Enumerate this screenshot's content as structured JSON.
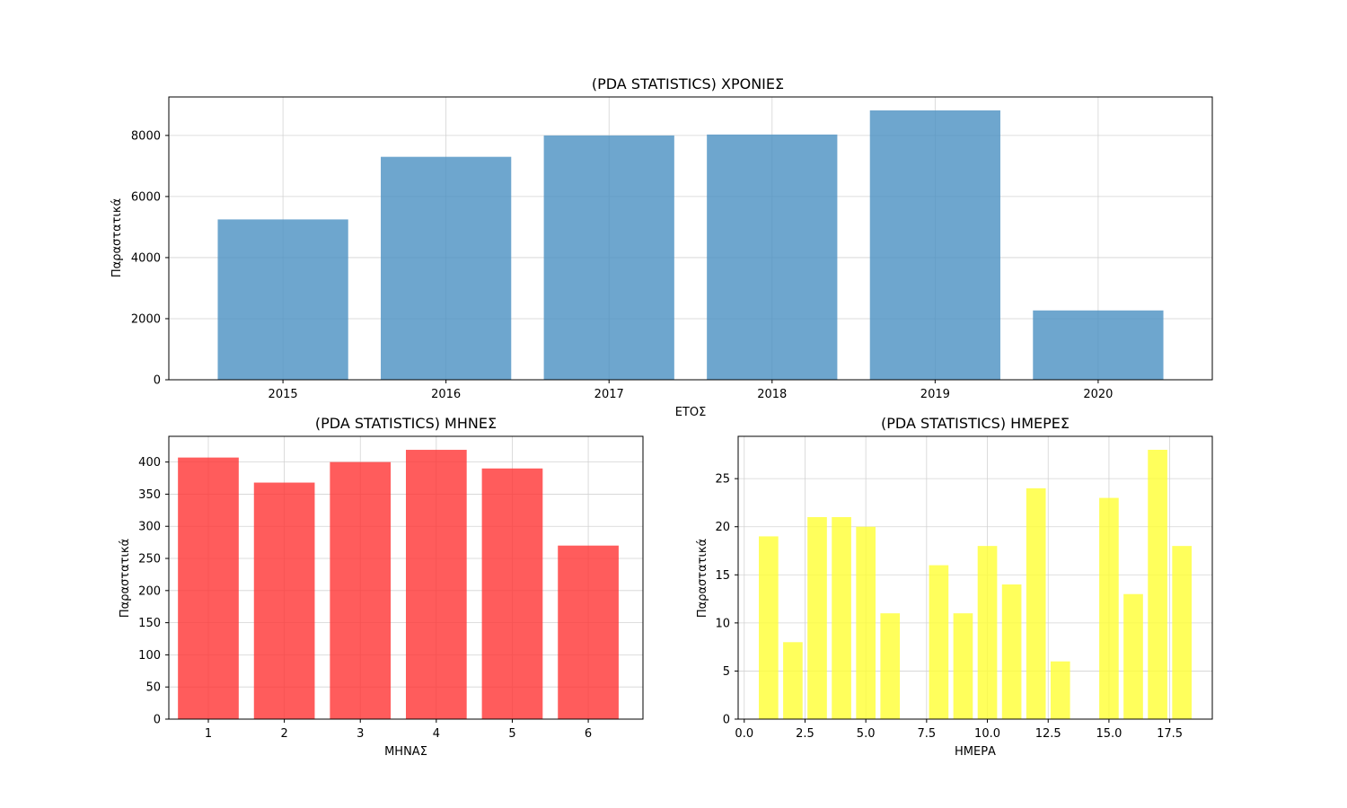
{
  "chart_data": [
    {
      "type": "bar",
      "title": "(PDA STATISTICS) ΧΡΟΝΙΕΣ",
      "xlabel": "ΕΤΟΣ",
      "ylabel": "Παραστατικά",
      "categories": [
        "2015",
        "2016",
        "2017",
        "2018",
        "2019",
        "2020"
      ],
      "values": [
        5250,
        7300,
        8000,
        8030,
        8820,
        2270
      ],
      "x": [
        2015,
        2016,
        2017,
        2018,
        2019,
        2020
      ],
      "xlim": [
        2014.3,
        2020.7
      ],
      "ylim": [
        0,
        9260
      ],
      "yticks": [
        0,
        2000,
        4000,
        6000,
        8000
      ],
      "color": "#4a90c2",
      "grid": true
    },
    {
      "type": "bar",
      "title": "(PDA STATISTICS) ΜΗΝΕΣ",
      "xlabel": "ΜΗΝΑΣ",
      "ylabel": "Παραστατικά",
      "categories": [
        "1",
        "2",
        "3",
        "4",
        "5",
        "6"
      ],
      "values": [
        407,
        368,
        400,
        419,
        390,
        270
      ],
      "x": [
        1,
        2,
        3,
        4,
        5,
        6
      ],
      "xlim": [
        0.48,
        6.72
      ],
      "ylim": [
        0,
        440
      ],
      "yticks": [
        0,
        50,
        100,
        150,
        200,
        250,
        300,
        350,
        400
      ],
      "color": "#ff3333",
      "grid": true
    },
    {
      "type": "bar",
      "title": "(PDA STATISTICS) ΗΜΕΡΕΣ",
      "xlabel": "ΗΜΕΡΑ",
      "ylabel": "Παραστατικά",
      "x": [
        1,
        2,
        3,
        4,
        5,
        6,
        8,
        9,
        10,
        11,
        12,
        13,
        15,
        16,
        17,
        18
      ],
      "values": [
        19,
        8,
        21,
        21,
        20,
        11,
        16,
        11,
        18,
        14,
        24,
        6,
        23,
        13,
        28,
        18
      ],
      "xlim": [
        -0.25,
        19.25
      ],
      "ylim": [
        0,
        29.4
      ],
      "xticks": [
        0.0,
        2.5,
        5.0,
        7.5,
        10.0,
        12.5,
        15.0,
        17.5
      ],
      "yticks": [
        0,
        5,
        10,
        15,
        20,
        25
      ],
      "color": "#ffff33",
      "grid": true
    }
  ]
}
